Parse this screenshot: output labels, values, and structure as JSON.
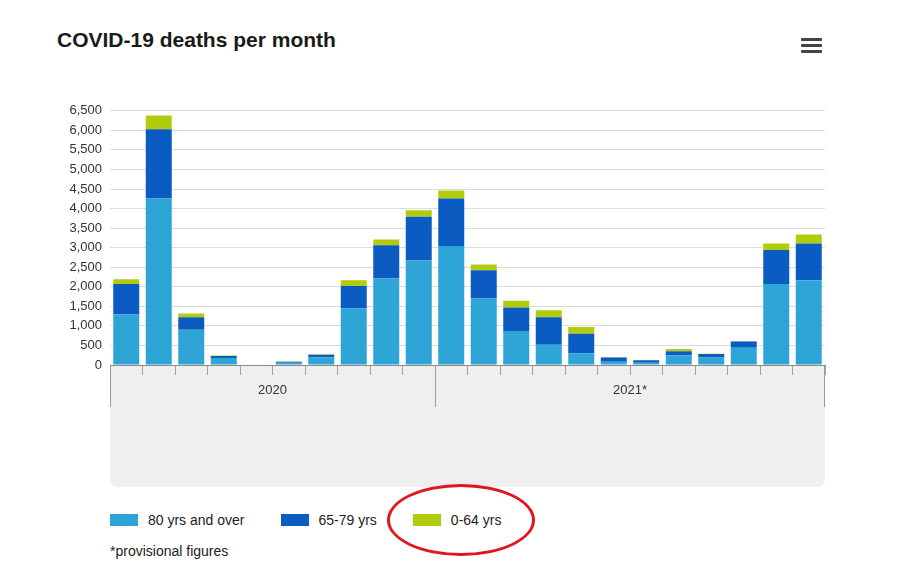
{
  "chart_data": {
    "type": "bar",
    "title": "COVID-19 deaths per month",
    "categories": [
      null,
      null,
      null,
      null,
      null,
      null,
      null,
      null,
      null,
      null,
      null,
      null,
      null,
      null,
      null,
      null,
      null,
      null,
      null,
      null,
      null,
      null
    ],
    "category_groups": [
      {
        "label": "2020",
        "start": 0,
        "end": 9
      },
      {
        "label": "2021*",
        "start": 10,
        "end": 21
      }
    ],
    "series": [
      {
        "name": "80 yrs and over",
        "color": "#2ea5d6",
        "values": [
          1300,
          4260,
          900,
          180,
          10,
          60,
          200,
          1450,
          2210,
          2670,
          3040,
          1700,
          870,
          520,
          300,
          80,
          60,
          250,
          190,
          440,
          2070,
          2170
        ]
      },
      {
        "name": "65-79 yrs",
        "color": "#0a5bc2",
        "values": [
          770,
          1770,
          320,
          50,
          4,
          25,
          60,
          570,
          850,
          1120,
          1220,
          720,
          600,
          700,
          500,
          110,
          60,
          100,
          90,
          160,
          870,
          940
        ]
      },
      {
        "name": "0-64 yrs",
        "color": "#b0cc0c",
        "values": [
          120,
          350,
          100,
          10,
          1,
          5,
          15,
          150,
          150,
          170,
          200,
          150,
          170,
          180,
          170,
          10,
          10,
          60,
          10,
          10,
          170,
          230
        ]
      }
    ],
    "stacked": true,
    "ylim": [
      0,
      6500
    ],
    "yticks": [
      0,
      500,
      {
        "value": 1000,
        "label": "1,000"
      },
      {
        "value": 1500,
        "label": "1,500"
      },
      {
        "value": 2000,
        "label": "2,000"
      },
      {
        "value": 2500,
        "label": "2,500"
      },
      {
        "value": 3000,
        "label": "3,000"
      },
      {
        "value": 3500,
        "label": "3,500"
      },
      {
        "value": 4000,
        "label": "4,000"
      },
      {
        "value": 4500,
        "label": "4,500"
      },
      {
        "value": 5000,
        "label": "5,000"
      },
      {
        "value": 5500,
        "label": "5,500"
      },
      {
        "value": 6000,
        "label": "6,000"
      },
      {
        "value": 6500,
        "label": "6,500"
      }
    ],
    "grid": true,
    "legend": "bottom",
    "footnote": "*provisional figures"
  }
}
